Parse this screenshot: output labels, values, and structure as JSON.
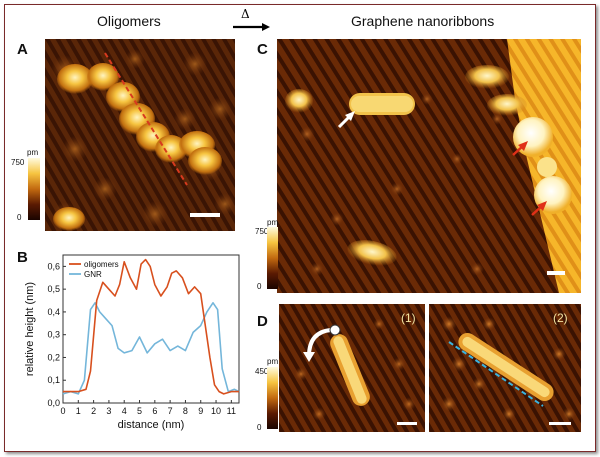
{
  "headers": {
    "left": "Oligomers",
    "arrow_symbol": "Δ",
    "right": "Graphene nanoribbons"
  },
  "panels": {
    "A": {
      "letter": "A"
    },
    "B": {
      "letter": "B"
    },
    "C": {
      "letter": "C"
    },
    "D": {
      "letter": "D",
      "sub1": "(1)",
      "sub2": "(2)"
    }
  },
  "colorbars": {
    "A": {
      "unit": "pm",
      "max": "750",
      "min": "0"
    },
    "C": {
      "unit": "pm",
      "max": "750",
      "min": "0"
    },
    "D": {
      "unit": "pm",
      "max": "450",
      "min": "0"
    }
  },
  "colors": {
    "oligomers": "#d8501e",
    "gnr": "#74b6da",
    "stm_dark": "#2a0a02",
    "stm_mid": "#b85a10",
    "stm_bright": "#fff0b0"
  },
  "chart_data": {
    "type": "line",
    "xlabel": "distance (nm)",
    "ylabel": "relative height (nm)",
    "xlim": [
      0,
      11.5
    ],
    "ylim": [
      0,
      0.65
    ],
    "xticks": [
      "0",
      "1",
      "2",
      "3",
      "4",
      "5",
      "6",
      "7",
      "8",
      "9",
      "10",
      "11"
    ],
    "yticks": [
      "0,0",
      "0,1",
      "0,2",
      "0,3",
      "0,4",
      "0,5",
      "0,6"
    ],
    "legend": "top-left",
    "series": [
      {
        "name": "oligomers",
        "color": "#d8501e",
        "x": [
          0,
          0.5,
          1.0,
          1.5,
          1.8,
          2.2,
          2.6,
          3.0,
          3.4,
          3.7,
          4.0,
          4.4,
          4.8,
          5.1,
          5.4,
          5.7,
          6.0,
          6.4,
          6.8,
          7.1,
          7.4,
          7.8,
          8.2,
          8.6,
          9.0,
          9.3,
          9.6,
          9.9,
          10.2,
          10.5,
          11.0,
          11.5
        ],
        "y": [
          0.05,
          0.05,
          0.05,
          0.06,
          0.14,
          0.45,
          0.53,
          0.5,
          0.47,
          0.52,
          0.62,
          0.55,
          0.5,
          0.61,
          0.63,
          0.6,
          0.52,
          0.47,
          0.51,
          0.57,
          0.58,
          0.55,
          0.48,
          0.51,
          0.48,
          0.34,
          0.2,
          0.08,
          0.05,
          0.04,
          0.05,
          0.05
        ]
      },
      {
        "name": "GNR",
        "color": "#74b6da",
        "x": [
          0,
          0.5,
          1.0,
          1.4,
          1.8,
          2.1,
          2.4,
          2.8,
          3.2,
          3.6,
          4.0,
          4.5,
          5.0,
          5.5,
          6.0,
          6.5,
          7.0,
          7.5,
          8.0,
          8.5,
          9.0,
          9.4,
          9.8,
          10.1,
          10.4,
          10.8,
          11.2,
          11.5
        ],
        "y": [
          0.04,
          0.05,
          0.04,
          0.1,
          0.41,
          0.44,
          0.4,
          0.37,
          0.34,
          0.24,
          0.22,
          0.23,
          0.29,
          0.22,
          0.26,
          0.28,
          0.23,
          0.25,
          0.23,
          0.31,
          0.34,
          0.4,
          0.44,
          0.41,
          0.15,
          0.05,
          0.06,
          0.05
        ]
      }
    ]
  }
}
